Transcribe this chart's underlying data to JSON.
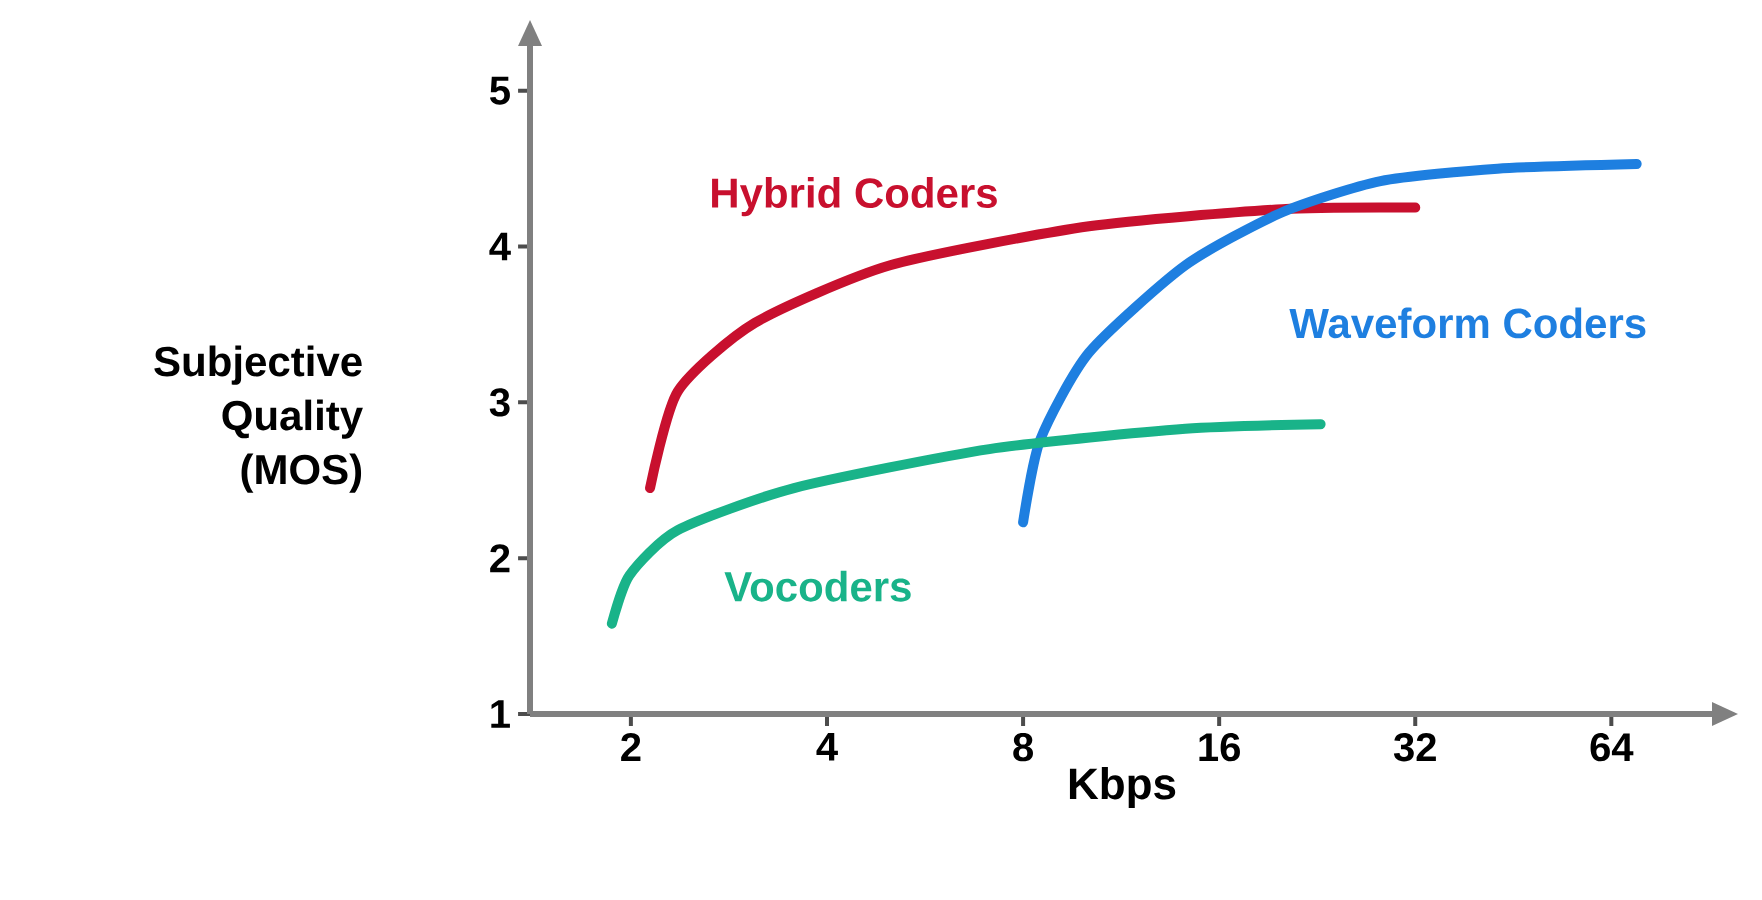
{
  "chart_data": {
    "type": "line",
    "xlabel": "Kbps",
    "ylabel": "Subjective Quality (MOS)",
    "log": "x",
    "xlim": [
      1.4,
      92
    ],
    "ylim": [
      1,
      5.3
    ],
    "xticks": [
      2,
      4,
      8,
      16,
      32,
      64
    ],
    "yticks": [
      1,
      2,
      3,
      4,
      5
    ],
    "series": [
      {
        "name": "Hybrid Coders",
        "color": "#c8102e",
        "x": [
          2.14,
          2.36,
          3.1,
          5.0,
          10.1,
          20,
          32
        ],
        "values": [
          2.45,
          3.07,
          3.51,
          3.88,
          4.13,
          4.24,
          4.25
        ]
      },
      {
        "name": "Waveform Coders",
        "color": "#1e7fe0",
        "x": [
          8.0,
          8.5,
          10.1,
          14.2,
          20,
          28.3,
          42.8,
          70
        ],
        "values": [
          2.23,
          2.76,
          3.32,
          3.88,
          4.22,
          4.42,
          4.5,
          4.53
        ]
      },
      {
        "name": "Vocoders",
        "color": "#19b389",
        "x": [
          1.87,
          1.99,
          2.36,
          3.56,
          7.1,
          14.2,
          22.9
        ],
        "values": [
          1.58,
          1.89,
          2.18,
          2.45,
          2.7,
          2.83,
          2.86
        ]
      }
    ]
  }
}
